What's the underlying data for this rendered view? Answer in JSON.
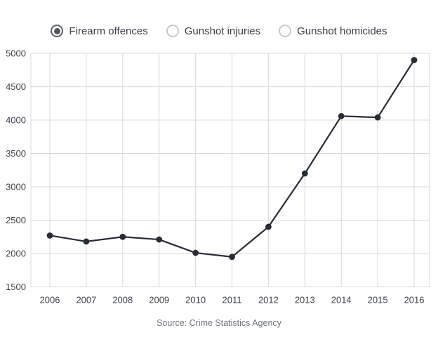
{
  "legend": {
    "options": [
      {
        "label": "Firearm offences",
        "selected": true
      },
      {
        "label": "Gunshot injuries",
        "selected": false
      },
      {
        "label": "Gunshot homicides",
        "selected": false
      }
    ]
  },
  "source": "Source: Crime Statistics Agency",
  "colors": {
    "line": "#282c35",
    "grid": "#d8d8d8",
    "tick_label": "#3d424b"
  },
  "chart_data": {
    "type": "line",
    "title": "",
    "xlabel": "",
    "ylabel": "",
    "x": [
      2006,
      2007,
      2008,
      2009,
      2010,
      2011,
      2012,
      2013,
      2014,
      2015,
      2016
    ],
    "series": [
      {
        "name": "Firearm offences",
        "values": [
          2270,
          2180,
          2250,
          2210,
          2010,
          1950,
          2400,
          3200,
          4060,
          4040,
          4900
        ]
      }
    ],
    "ylim": [
      1500,
      5000
    ],
    "ytick_step": 500,
    "yticks": [
      1500,
      2000,
      2500,
      3000,
      3500,
      4000,
      4500,
      5000
    ],
    "grid": true,
    "legend_position": "top",
    "marker": "circle"
  }
}
